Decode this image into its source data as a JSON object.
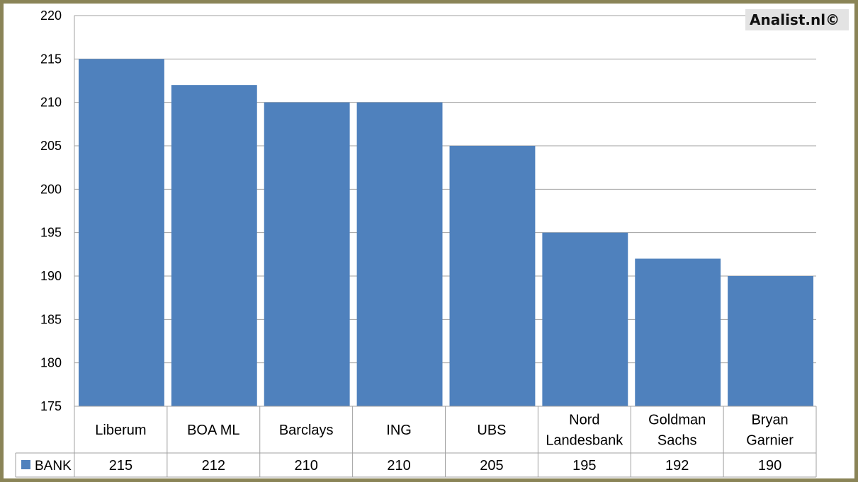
{
  "watermark": "Analist.nl©",
  "colors": {
    "bar": "#4f81bd",
    "frame": "#8a8457",
    "grid": "#a0a0a0"
  },
  "chart_data": {
    "type": "bar",
    "categories": [
      [
        "Liberum"
      ],
      [
        "BOA ML"
      ],
      [
        "Barclays"
      ],
      [
        "ING"
      ],
      [
        "UBS"
      ],
      [
        "Nord",
        "Landesbank"
      ],
      [
        "Goldman",
        "Sachs"
      ],
      [
        "Bryan",
        "Garnier"
      ]
    ],
    "series": [
      {
        "name": "BANK",
        "values": [
          215,
          212,
          210,
          210,
          205,
          195,
          192,
          190
        ]
      }
    ],
    "ylim": [
      175,
      220
    ],
    "ytick_step": 5,
    "grid": true,
    "legend": "data-table",
    "data_table": true
  }
}
